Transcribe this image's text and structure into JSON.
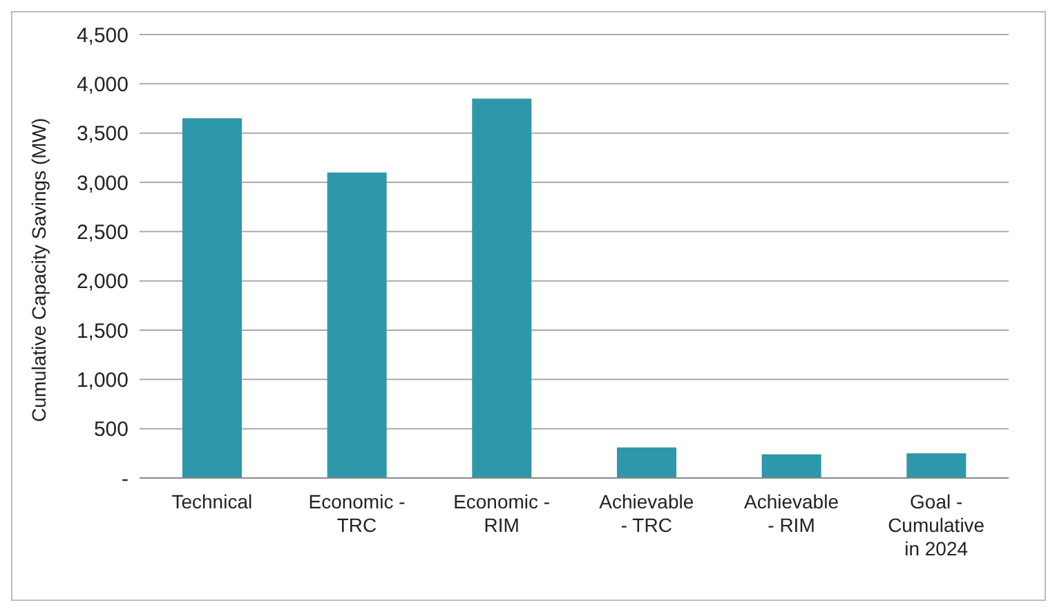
{
  "chart_data": {
    "type": "bar",
    "ylabel": "Cumulative Capacity Savings (MW)",
    "categories": [
      "Technical",
      "Economic - TRC",
      "Economic - RIM",
      "Achievable - TRC",
      "Achievable - RIM",
      "Goal - Cumulative in 2024"
    ],
    "values": [
      3650,
      3100,
      3850,
      310,
      240,
      250
    ],
    "color": "#2e97aa",
    "ylim": [
      0,
      4500
    ],
    "yticks": [
      {
        "value": 0,
        "label": "-"
      },
      {
        "value": 500,
        "label": "500"
      },
      {
        "value": 1000,
        "label": "1,000"
      },
      {
        "value": 1500,
        "label": "1,500"
      },
      {
        "value": 2000,
        "label": "2,000"
      },
      {
        "value": 2500,
        "label": "2,500"
      },
      {
        "value": 3000,
        "label": "3,000"
      },
      {
        "value": 3500,
        "label": "3,500"
      },
      {
        "value": 4000,
        "label": "4,000"
      },
      {
        "value": 4500,
        "label": "4,500"
      }
    ],
    "grid": "y"
  }
}
